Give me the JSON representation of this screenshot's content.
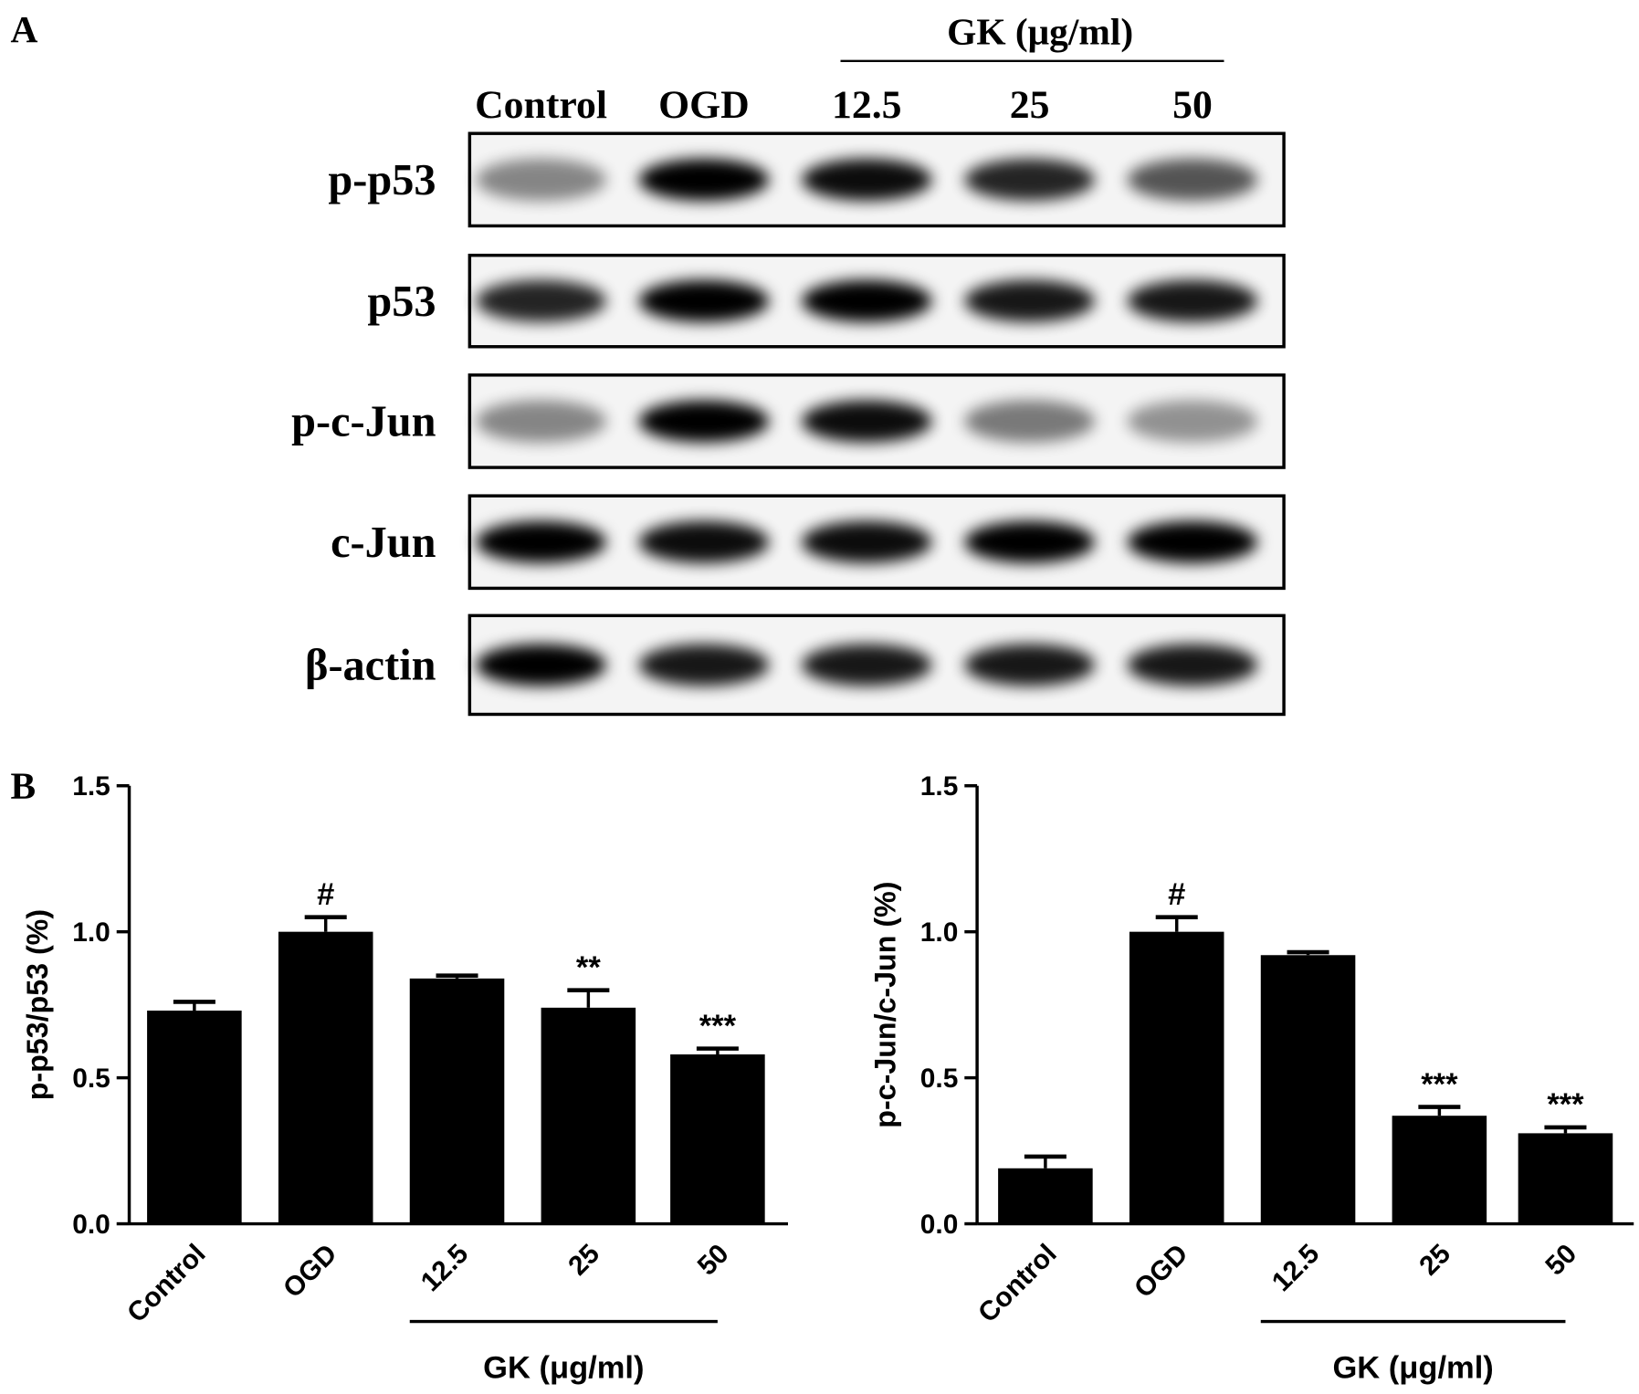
{
  "blot": {
    "panel_label": "A",
    "group_label": "GK (μg/ml)",
    "lanes": [
      "Control",
      "OGD",
      "12.5",
      "25",
      "50"
    ],
    "rows": [
      "p-p53",
      "p53",
      "p-c-Jun",
      "c-Jun",
      "β-actin"
    ]
  },
  "chart_data": [
    {
      "type": "bar",
      "panel_label": "B",
      "y_label": "p-p53/p53 (%)",
      "categories": [
        "Control",
        "OGD",
        "12.5",
        "25",
        "50"
      ],
      "values": [
        0.73,
        1.0,
        0.84,
        0.74,
        0.58
      ],
      "errors": [
        0.03,
        0.05,
        0.01,
        0.06,
        0.02
      ],
      "annotations": [
        {
          "category": "OGD",
          "text": "#"
        },
        {
          "category": "25",
          "text": "**"
        },
        {
          "category": "50",
          "text": "***"
        }
      ],
      "group_label": "GK (μg/ml)",
      "group_categories": [
        "12.5",
        "25",
        "50"
      ],
      "color": "#000000",
      "ylim": [
        0,
        1.5
      ],
      "yticks": [
        {
          "value": 0,
          "label": "0.0"
        },
        0.5,
        {
          "value": 1,
          "label": "1.0"
        },
        1.5
      ]
    },
    {
      "type": "bar",
      "y_label": "p-c-Jun/c-Jun (%)",
      "categories": [
        "Control",
        "OGD",
        "12.5",
        "25",
        "50"
      ],
      "values": [
        0.19,
        1.0,
        0.92,
        0.37,
        0.31
      ],
      "errors": [
        0.04,
        0.05,
        0.01,
        0.03,
        0.02
      ],
      "annotations": [
        {
          "category": "OGD",
          "text": "#"
        },
        {
          "category": "25",
          "text": "***"
        },
        {
          "category": "50",
          "text": "***"
        }
      ],
      "group_label": "GK (μg/ml)",
      "group_categories": [
        "12.5",
        "25",
        "50"
      ],
      "color": "#000000",
      "ylim": [
        0,
        1.5
      ],
      "yticks": [
        {
          "value": 0,
          "label": "0.0"
        },
        0.5,
        {
          "value": 1,
          "label": "1.0"
        },
        1.5
      ]
    }
  ]
}
